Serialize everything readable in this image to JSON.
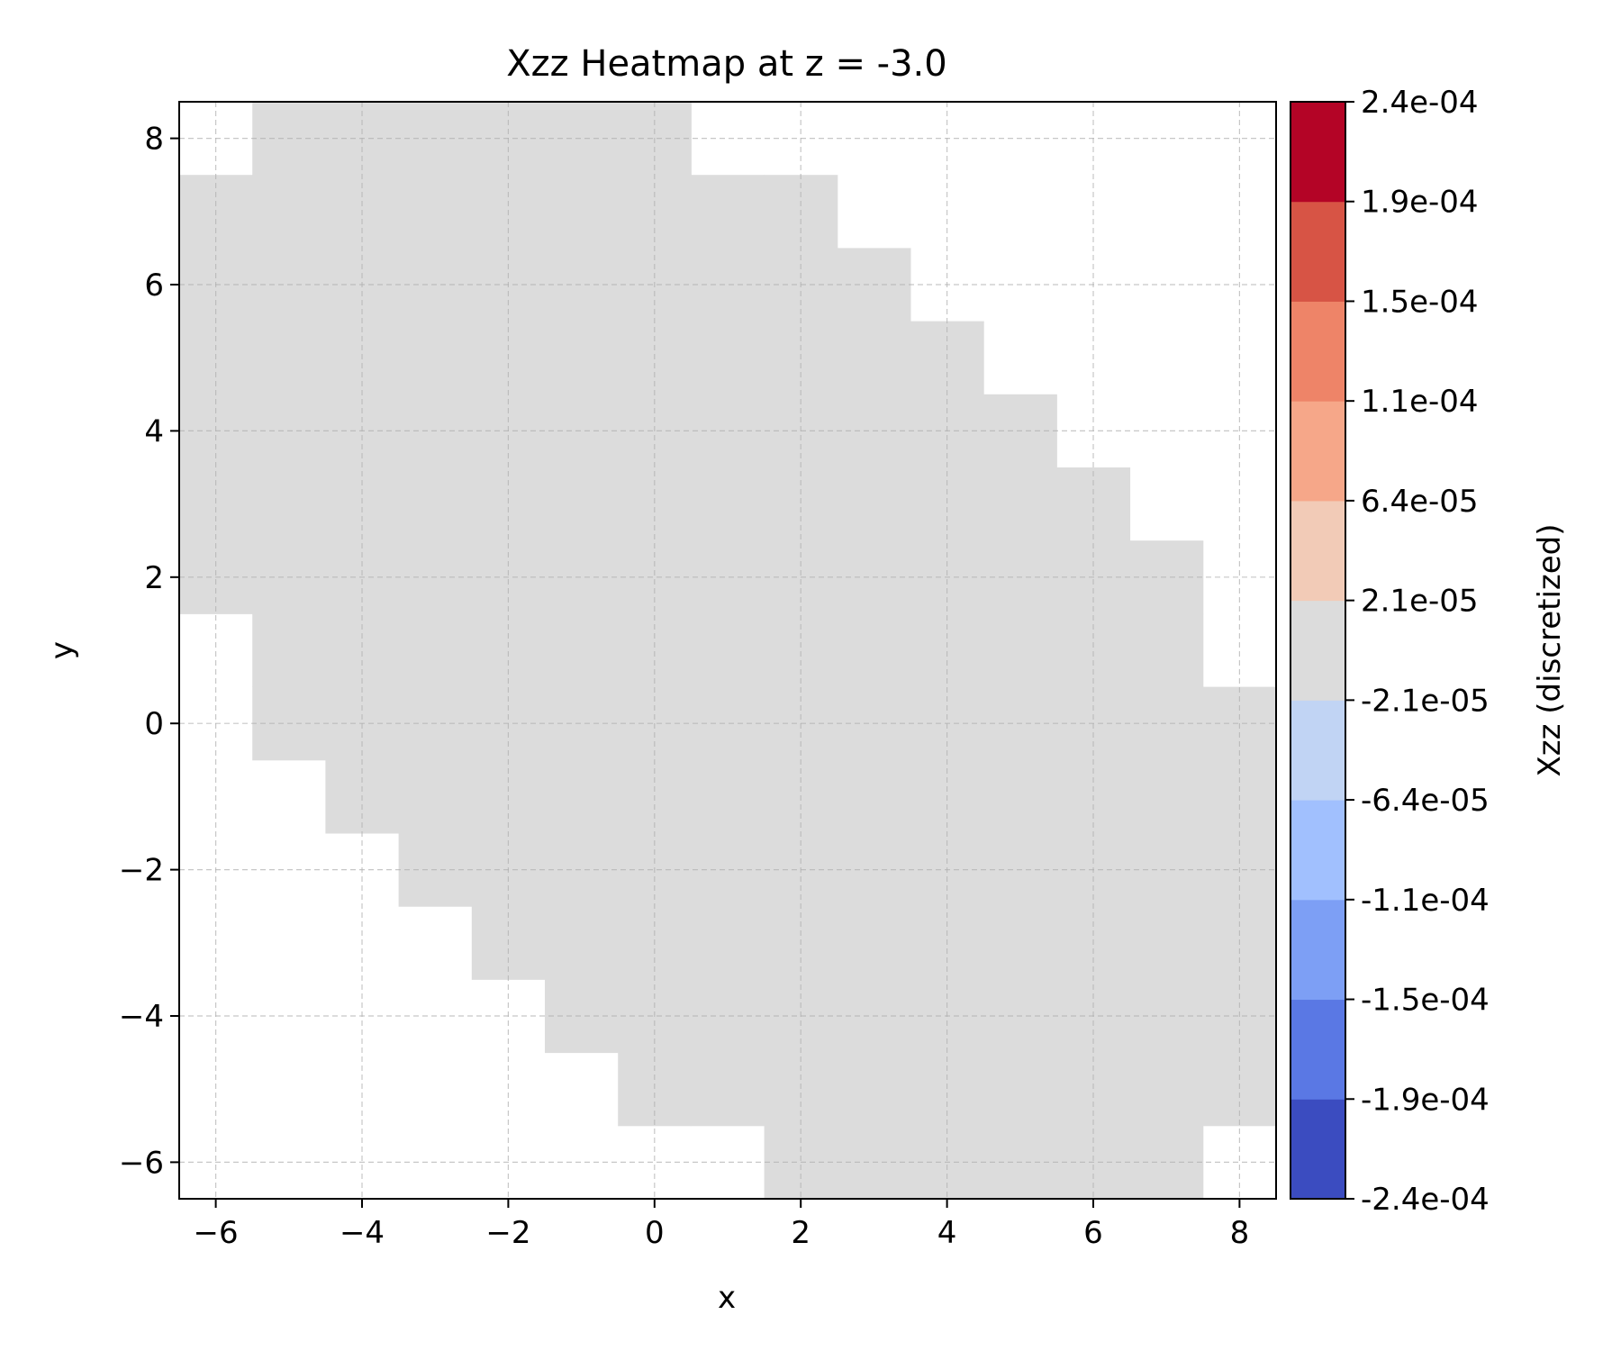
{
  "chart_data": {
    "type": "heatmap",
    "title": "Xzz Heatmap at z = -3.0",
    "xlabel": "x",
    "ylabel": "y",
    "xlim": [
      -6.5,
      8.5
    ],
    "ylim": [
      -6.5,
      8.5
    ],
    "xticks": [
      -6,
      -4,
      -2,
      0,
      2,
      4,
      6,
      8
    ],
    "yticks": [
      -6,
      -4,
      -2,
      0,
      2,
      4,
      6,
      8
    ],
    "xtick_labels": [
      "−6",
      "−4",
      "−2",
      "0",
      "2",
      "4",
      "6",
      "8"
    ],
    "ytick_labels": [
      "−6",
      "−4",
      "−2",
      "0",
      "2",
      "4",
      "6",
      "8"
    ],
    "grid": true,
    "cell_value": "-2.1e-05 to 2.1e-05",
    "cell_color": "#dcdcdc",
    "rows": [
      {
        "y": 8,
        "x_ranges": [
          [
            -5,
            0
          ]
        ]
      },
      {
        "y": 7,
        "x_ranges": [
          [
            -6,
            2
          ]
        ]
      },
      {
        "y": 6,
        "x_ranges": [
          [
            -6,
            3
          ]
        ]
      },
      {
        "y": 5,
        "x_ranges": [
          [
            -6,
            4
          ]
        ]
      },
      {
        "y": 4,
        "x_ranges": [
          [
            -6,
            5
          ]
        ]
      },
      {
        "y": 3,
        "x_ranges": [
          [
            -6,
            6
          ]
        ]
      },
      {
        "y": 2,
        "x_ranges": [
          [
            -6,
            7
          ]
        ]
      },
      {
        "y": 1,
        "x_ranges": [
          [
            -5,
            7
          ]
        ]
      },
      {
        "y": 0,
        "x_ranges": [
          [
            -5,
            8
          ]
        ]
      },
      {
        "y": -1,
        "x_ranges": [
          [
            -4,
            8
          ]
        ]
      },
      {
        "y": -2,
        "x_ranges": [
          [
            -3,
            8
          ]
        ]
      },
      {
        "y": -3,
        "x_ranges": [
          [
            -2,
            8
          ]
        ]
      },
      {
        "y": -4,
        "x_ranges": [
          [
            -1,
            8
          ]
        ]
      },
      {
        "y": -5,
        "x_ranges": [
          [
            0,
            8
          ]
        ]
      },
      {
        "y": -6,
        "x_ranges": [
          [
            2,
            7
          ]
        ]
      }
    ],
    "colorbar": {
      "label": "Xzz (discretized)",
      "tick_labels": [
        "-2.4e-04",
        "-1.9e-04",
        "-1.5e-04",
        "-1.1e-04",
        "-6.4e-05",
        "-2.1e-05",
        "2.1e-05",
        "6.4e-05",
        "1.1e-04",
        "1.5e-04",
        "1.9e-04",
        "2.4e-04"
      ],
      "colors": [
        "#3b4cc0",
        "#5a78e4",
        "#7d9ff5",
        "#a1c0fe",
        "#c1d4f4",
        "#dcdcdc",
        "#f2cbb7",
        "#f6a789",
        "#ee8468",
        "#d75445",
        "#b40426"
      ]
    }
  }
}
